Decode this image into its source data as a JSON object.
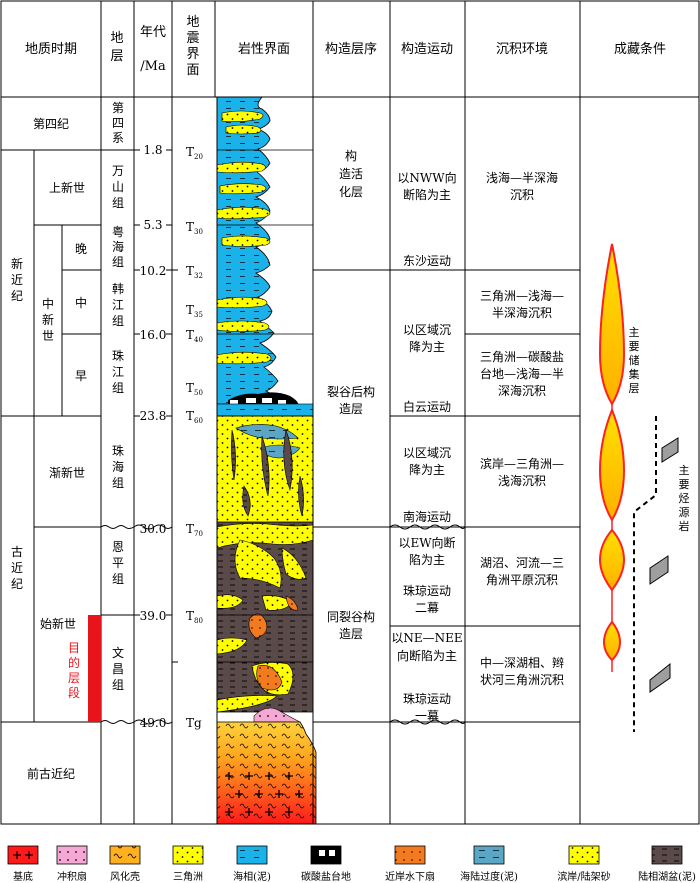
{
  "headers": {
    "period": "地质时期",
    "formation": [
      "地",
      "层"
    ],
    "age": [
      "年代",
      "/Ma"
    ],
    "seismic": [
      "地",
      "震",
      "界",
      "面"
    ],
    "lithology": "岩性界面",
    "sequence": "构造层序",
    "tectonic": "构造运动",
    "environment": "沉积环境",
    "reservoir": "成藏条件"
  },
  "periods": {
    "quaternary": "第四纪",
    "neogene": [
      "新",
      "近",
      "纪"
    ],
    "paleogene": [
      "古",
      "近",
      "纪"
    ],
    "pre_paleogene": "前古近纪"
  },
  "epochs": {
    "pliocene": "上新世",
    "miocene": [
      "中",
      "新",
      "世"
    ],
    "oligocene": "渐新世",
    "eocene": "始新世",
    "late": "晚",
    "middle": "中",
    "early": "早"
  },
  "formations": {
    "quaternary": [
      "第",
      "四",
      "系"
    ],
    "wanshan": [
      "万",
      "山",
      "组"
    ],
    "yuehai": [
      "粤",
      "海",
      "组"
    ],
    "hanjiang": [
      "韩",
      "江",
      "组"
    ],
    "zhujiang": [
      "珠",
      "江",
      "组"
    ],
    "zhuhai": [
      "珠",
      "海",
      "组"
    ],
    "enping": [
      "恩",
      "平",
      "组"
    ],
    "wenchang": [
      "文",
      "昌",
      "组"
    ]
  },
  "target_interval": [
    "目",
    "的",
    "层",
    "段"
  ],
  "ages": [
    "1.8",
    "5.3",
    "10.2",
    "16.0",
    "23.8",
    "30.0",
    "39.0",
    "49.0"
  ],
  "seismic_interfaces": [
    {
      "base": "T",
      "sub": "20"
    },
    {
      "base": "T",
      "sub": "30"
    },
    {
      "base": "T",
      "sub": "32"
    },
    {
      "base": "T",
      "sub": "35"
    },
    {
      "base": "T",
      "sub": "40"
    },
    {
      "base": "T",
      "sub": "50"
    },
    {
      "base": "T",
      "sub": "60"
    },
    {
      "base": "T",
      "sub": "70"
    },
    {
      "base": "T",
      "sub": "80"
    },
    {
      "base": "Tg",
      "sub": ""
    }
  ],
  "sequences": {
    "active": [
      "构",
      "造活",
      "化层"
    ],
    "postrift": [
      "裂谷后构",
      "造层"
    ],
    "synrift": [
      "同裂谷构",
      "造层"
    ]
  },
  "tectonics": {
    "nww": [
      "以NWW向",
      "断陷为主"
    ],
    "dongsha": "东沙运动",
    "regional1": [
      "以区域沉",
      "降为主"
    ],
    "baiyun": "白云运动",
    "regional2": [
      "以区域沉",
      "降为主"
    ],
    "nanhai": "南海运动",
    "ew": [
      "以EW向断",
      "陷为主"
    ],
    "zhuqiong2": [
      "珠琼运动",
      "二幕"
    ],
    "nenee": [
      "以NE—NEE",
      "向断陷为主"
    ],
    "zhuqiong1": [
      "珠琼运动",
      "一幕"
    ]
  },
  "environments": {
    "env1": [
      "浅海—半深海",
      "沉积"
    ],
    "env2": [
      "三角洲—浅海—",
      "半深海沉积"
    ],
    "env3": [
      "三角洲—碳酸盐",
      "台地—浅海—半",
      "深海沉积"
    ],
    "env4": [
      "滨岸—三角洲—",
      "浅海沉积"
    ],
    "env5": [
      "湖沼、河流—三",
      "角洲平原沉积"
    ],
    "env6": [
      "中—深湖相、辫",
      "状河三角洲沉积"
    ]
  },
  "reservoir_labels": {
    "main_reservoir": [
      "主",
      "要",
      "储",
      "集",
      "层"
    ],
    "main_source": [
      "主",
      "要",
      "烃",
      "源",
      "岩"
    ]
  },
  "legend": [
    {
      "key": "basement",
      "label": "基底"
    },
    {
      "key": "alluvial_fan",
      "label": "冲积扇"
    },
    {
      "key": "weathered_crust",
      "label": "风化壳"
    },
    {
      "key": "delta",
      "label": "三角洲"
    },
    {
      "key": "marine",
      "label": "海相(泥)"
    },
    {
      "key": "carbonate",
      "label": "碳酸盐台地"
    },
    {
      "key": "nearshore_fan",
      "label": "近岸水下扇"
    },
    {
      "key": "transition",
      "label": "海陆过度(泥)"
    },
    {
      "key": "shore_shelf",
      "label": "滨岸/陆架砂"
    },
    {
      "key": "lacustrine",
      "label": "陆相湖盆(泥)"
    }
  ],
  "colors": {
    "marine": "#1ab2e8",
    "delta": "#ffff00",
    "lacustrine": "#5a4a4a",
    "nearshore": "#f47a20",
    "alluvial": "#f6a8d4",
    "basement_red": "#ff1a1a",
    "carbonate": "#000000",
    "target_red": "#e8141b",
    "reservoir_fill": "#ffc20e",
    "reservoir_edge": "#ff2020",
    "source_gray": "#9e9e9e"
  }
}
